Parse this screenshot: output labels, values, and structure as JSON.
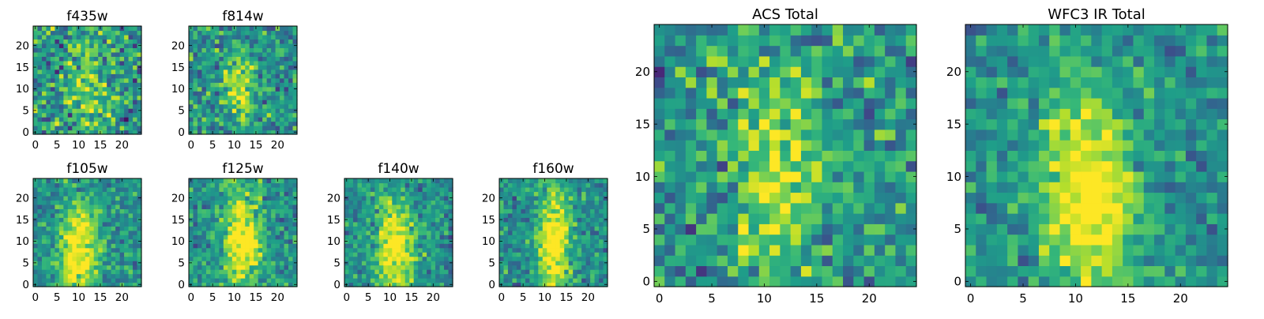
{
  "figure": {
    "colormap": "viridis",
    "colors": {
      "low": "#440154",
      "mid": "#21918c",
      "high": "#fde725"
    }
  },
  "chart_data": [
    {
      "type": "heatmap",
      "title": "f435w",
      "grid_size": 25,
      "xticks": [
        "0",
        "5",
        "10",
        "15",
        "20"
      ],
      "yticks": [
        "0",
        "5",
        "10",
        "15",
        "20"
      ],
      "xlim": [
        -0.5,
        24.5
      ],
      "ylim": [
        -0.5,
        24.5
      ],
      "peak_location": [
        12,
        12
      ],
      "peak_spread": [
        5,
        9
      ],
      "signal_to_noise": 0.35
    },
    {
      "type": "heatmap",
      "title": "f814w",
      "grid_size": 25,
      "xticks": [
        "0",
        "5",
        "10",
        "15",
        "20"
      ],
      "yticks": [
        "0",
        "5",
        "10",
        "15",
        "20"
      ],
      "xlim": [
        -0.5,
        24.5
      ],
      "ylim": [
        -0.5,
        24.5
      ],
      "peak_location": [
        11,
        10
      ],
      "peak_spread": [
        2.5,
        5
      ],
      "signal_to_noise": 0.6
    },
    {
      "type": "heatmap",
      "title": "f105w",
      "grid_size": 25,
      "xticks": [
        "0",
        "5",
        "10",
        "15",
        "20"
      ],
      "yticks": [
        "0",
        "5",
        "10",
        "15",
        "20"
      ],
      "xlim": [
        -0.5,
        24.5
      ],
      "ylim": [
        -0.5,
        24.5
      ],
      "peak_location": [
        10,
        8
      ],
      "peak_spread": [
        3,
        8
      ],
      "signal_to_noise": 0.8
    },
    {
      "type": "heatmap",
      "title": "f125w",
      "grid_size": 25,
      "xticks": [
        "0",
        "5",
        "10",
        "15",
        "20"
      ],
      "yticks": [
        "0",
        "5",
        "10",
        "15",
        "20"
      ],
      "xlim": [
        -0.5,
        24.5
      ],
      "ylim": [
        -0.5,
        24.5
      ],
      "peak_location": [
        12,
        10
      ],
      "peak_spread": [
        3,
        8
      ],
      "signal_to_noise": 0.8
    },
    {
      "type": "heatmap",
      "title": "f140w",
      "grid_size": 25,
      "xticks": [
        "0",
        "5",
        "10",
        "15",
        "20"
      ],
      "yticks": [
        "0",
        "5",
        "10",
        "15",
        "20"
      ],
      "xlim": [
        -0.5,
        24.5
      ],
      "ylim": [
        -0.5,
        24.5
      ],
      "peak_location": [
        11,
        9
      ],
      "peak_spread": [
        3,
        7
      ],
      "signal_to_noise": 0.8
    },
    {
      "type": "heatmap",
      "title": "f160w",
      "grid_size": 25,
      "xticks": [
        "0",
        "5",
        "10",
        "15",
        "20"
      ],
      "yticks": [
        "0",
        "5",
        "10",
        "15",
        "20"
      ],
      "xlim": [
        -0.5,
        24.5
      ],
      "ylim": [
        -0.5,
        24.5
      ],
      "peak_location": [
        12,
        10
      ],
      "peak_spread": [
        2.5,
        8
      ],
      "signal_to_noise": 0.85
    },
    {
      "type": "heatmap",
      "title": "ACS Total",
      "grid_size": 25,
      "xticks": [
        "0",
        "5",
        "10",
        "15",
        "20"
      ],
      "yticks": [
        "0",
        "5",
        "10",
        "15",
        "20"
      ],
      "xlim": [
        -0.5,
        24.5
      ],
      "ylim": [
        -0.5,
        24.5
      ],
      "peak_location": [
        11,
        10
      ],
      "peak_spread": [
        3,
        8
      ],
      "signal_to_noise": 0.55
    },
    {
      "type": "heatmap",
      "title": "WFC3 IR Total",
      "grid_size": 25,
      "xticks": [
        "0",
        "5",
        "10",
        "15",
        "20"
      ],
      "yticks": [
        "0",
        "5",
        "10",
        "15",
        "20"
      ],
      "xlim": [
        -0.5,
        24.5
      ],
      "ylim": [
        -0.5,
        24.5
      ],
      "peak_location": [
        11,
        8
      ],
      "peak_spread": [
        3,
        7
      ],
      "signal_to_noise": 0.85
    }
  ]
}
